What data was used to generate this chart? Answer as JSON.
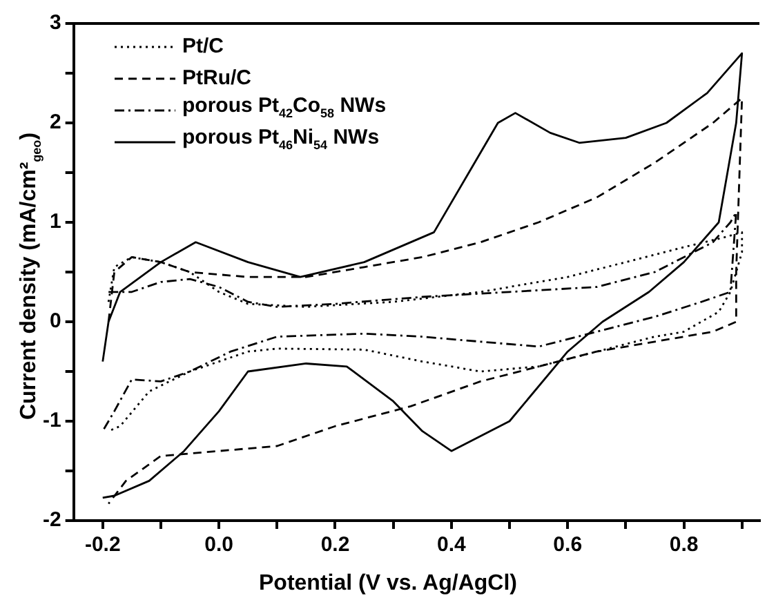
{
  "chart_data": {
    "type": "line",
    "xlabel": "Potential (V vs. Ag/AgCl)",
    "ylabel": "Current density (mA/cm²$_{geo}$)",
    "xlim": [
      -0.25,
      0.93
    ],
    "ylim": [
      -2,
      3
    ],
    "xticks": [
      -0.2,
      {
        "value": -0.1,
        "label": null
      },
      "0.0",
      {
        "value": 0.1,
        "label": null
      },
      0.2,
      {
        "value": 0.3,
        "label": null
      },
      0.4,
      {
        "value": 0.5,
        "label": null
      },
      0.6,
      {
        "value": 0.7,
        "label": null
      },
      0.8,
      {
        "value": 0.9,
        "label": null
      }
    ],
    "yticks": [
      -2,
      {
        "value": -1.5,
        "label": null
      },
      -1,
      {
        "value": -0.5,
        "label": null
      },
      0,
      {
        "value": 0.5,
        "label": null
      },
      1,
      {
        "value": 1.5,
        "label": null
      },
      2,
      {
        "value": 2.5,
        "label": null
      },
      3
    ],
    "legend": "top left",
    "grid": false,
    "marker": "none",
    "series": [
      {
        "name": "Pt/C",
        "color": "#000000",
        "line_style": "dotted",
        "x": [
          -0.19,
          -0.18,
          -0.15,
          -0.1,
          -0.05,
          0.0,
          0.05,
          0.15,
          0.3,
          0.45,
          0.6,
          0.7,
          0.8,
          0.87,
          0.9,
          0.9,
          0.88,
          0.86,
          0.8,
          0.75,
          0.65,
          0.55,
          0.45,
          0.35,
          0.25,
          0.1,
          0.05,
          -0.05,
          -0.12,
          -0.17,
          -0.19
        ],
        "values": [
          0.2,
          0.55,
          0.65,
          0.6,
          0.5,
          0.3,
          0.18,
          0.15,
          0.2,
          0.3,
          0.45,
          0.6,
          0.75,
          0.85,
          0.9,
          0.7,
          0.3,
          0.1,
          -0.1,
          -0.15,
          -0.3,
          -0.45,
          -0.5,
          -0.4,
          -0.28,
          -0.27,
          -0.3,
          -0.5,
          -0.7,
          -1.05,
          -1.1
        ]
      },
      {
        "name": "PtRu/C",
        "color": "#000000",
        "line_style": "dashed",
        "x": [
          -0.19,
          -0.18,
          -0.15,
          -0.1,
          -0.05,
          0.05,
          0.15,
          0.25,
          0.35,
          0.45,
          0.55,
          0.65,
          0.75,
          0.85,
          0.9,
          0.89,
          0.89,
          0.85,
          0.75,
          0.65,
          0.55,
          0.45,
          0.33,
          0.2,
          0.1,
          0.0,
          -0.1,
          -0.16,
          -0.19
        ],
        "values": [
          0.0,
          0.5,
          0.65,
          0.6,
          0.5,
          0.45,
          0.45,
          0.55,
          0.65,
          0.8,
          1.0,
          1.25,
          1.6,
          2.0,
          2.25,
          0.5,
          0.0,
          -0.1,
          -0.2,
          -0.3,
          -0.45,
          -0.6,
          -0.85,
          -1.05,
          -1.25,
          -1.3,
          -1.35,
          -1.6,
          -1.83
        ]
      },
      {
        "name": "porous Pt$_{42}$Co$_{58}$ NWs",
        "color": "#000000",
        "line_style": "dashdot",
        "x": [
          -0.19,
          -0.15,
          -0.1,
          -0.05,
          0.0,
          0.05,
          0.1,
          0.2,
          0.35,
          0.5,
          0.65,
          0.75,
          0.85,
          0.88,
          0.89,
          0.88,
          0.83,
          0.75,
          0.65,
          0.55,
          0.45,
          0.35,
          0.25,
          0.1,
          0.02,
          -0.05,
          -0.1,
          -0.15,
          -0.18,
          -0.2
        ],
        "values": [
          0.3,
          0.3,
          0.4,
          0.43,
          0.35,
          0.2,
          0.15,
          0.18,
          0.25,
          0.3,
          0.35,
          0.5,
          0.8,
          1.0,
          1.1,
          0.3,
          0.2,
          0.05,
          -0.1,
          -0.25,
          -0.2,
          -0.15,
          -0.12,
          -0.15,
          -0.3,
          -0.5,
          -0.6,
          -0.58,
          -0.9,
          -1.1
        ]
      },
      {
        "name": "porous Pt$_{46}$Ni$_{54}$ NWs",
        "color": "#000000",
        "line_style": "solid",
        "x": [
          -0.2,
          -0.19,
          -0.17,
          -0.1,
          -0.04,
          0.05,
          0.14,
          0.25,
          0.37,
          0.43,
          0.48,
          0.51,
          0.57,
          0.62,
          0.7,
          0.77,
          0.84,
          0.9,
          0.89,
          0.86,
          0.8,
          0.74,
          0.66,
          0.6,
          0.5,
          0.4,
          0.35,
          0.3,
          0.22,
          0.15,
          0.05,
          0.0,
          -0.06,
          -0.12,
          -0.18,
          -0.2
        ],
        "values": [
          -0.4,
          0.0,
          0.3,
          0.6,
          0.8,
          0.6,
          0.45,
          0.6,
          0.9,
          1.5,
          2.0,
          2.1,
          1.9,
          1.8,
          1.85,
          2.0,
          2.3,
          2.7,
          2.0,
          1.0,
          0.6,
          0.3,
          0.0,
          -0.3,
          -1.0,
          -1.3,
          -1.1,
          -0.8,
          -0.45,
          -0.42,
          -0.5,
          -0.9,
          -1.3,
          -1.6,
          -1.75,
          -1.77
        ]
      }
    ]
  }
}
